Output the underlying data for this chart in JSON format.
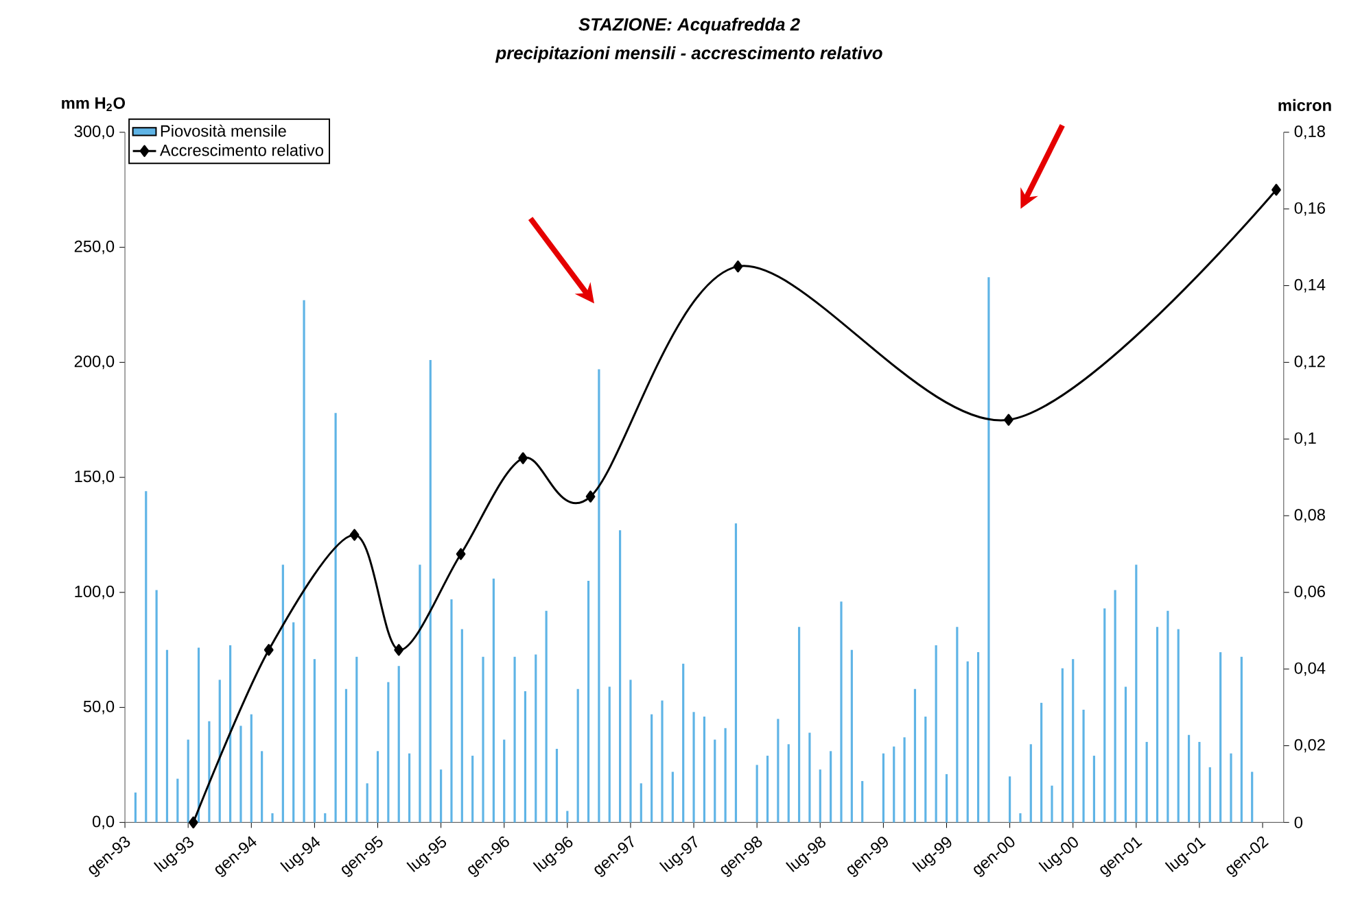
{
  "chart_data": {
    "type": "bar",
    "title": "STAZIONE: Acquafredda 2",
    "subtitle": "precipitazioni mensili - accrescimento relativo",
    "ylabel": "mm H$_{2}$O",
    "y2label": "micron",
    "xlim": [
      "1993-01",
      "2002-03"
    ],
    "xticks": [
      {
        "value": "1993-01",
        "label": "gen-93"
      },
      {
        "value": "1993-07",
        "label": "lug-93"
      },
      {
        "value": "1994-01",
        "label": "gen-94"
      },
      {
        "value": "1994-07",
        "label": "lug-94"
      },
      {
        "value": "1995-01",
        "label": "gen-95"
      },
      {
        "value": "1995-07",
        "label": "lug-95"
      },
      {
        "value": "1996-01",
        "label": "gen-96"
      },
      {
        "value": "1996-07",
        "label": "lug-96"
      },
      {
        "value": "1997-01",
        "label": "gen-97"
      },
      {
        "value": "1997-07",
        "label": "lug-97"
      },
      {
        "value": "1998-01",
        "label": "gen-98"
      },
      {
        "value": "1998-07",
        "label": "lug-98"
      },
      {
        "value": "1999-01",
        "label": "gen-99"
      },
      {
        "value": "1999-07",
        "label": "lug-99"
      },
      {
        "value": "2000-01",
        "label": "gen-00"
      },
      {
        "value": "2000-07",
        "label": "lug-00"
      },
      {
        "value": "2001-01",
        "label": "gen-01"
      },
      {
        "value": "2001-07",
        "label": "lug-01"
      },
      {
        "value": "2002-01",
        "label": "gen-02"
      }
    ],
    "ylim": [
      0,
      300
    ],
    "yticks": [
      {
        "value": 0,
        "label": "0,0"
      },
      {
        "value": 50,
        "label": "50,0"
      },
      {
        "value": 100,
        "label": "100,0"
      },
      {
        "value": 150,
        "label": "150,0"
      },
      {
        "value": 200,
        "label": "200,0"
      },
      {
        "value": 250,
        "label": "250,0"
      },
      {
        "value": 300,
        "label": "300,0"
      }
    ],
    "y2lim": [
      0,
      0.18
    ],
    "y2ticks": [
      0,
      {
        "value": 0.02,
        "label": "0,02"
      },
      {
        "value": 0.04,
        "label": "0,04"
      },
      {
        "value": 0.06,
        "label": "0,06"
      },
      {
        "value": 0.08,
        "label": "0,08"
      },
      {
        "value": 0.1,
        "label": "0,1"
      },
      {
        "value": 0.12,
        "label": "0,12"
      },
      {
        "value": 0.14,
        "label": "0,14"
      },
      {
        "value": 0.16,
        "label": "0,16"
      },
      {
        "value": 0.18,
        "label": "0,18"
      }
    ],
    "legend": "top left",
    "series": [
      {
        "name": "Piovosità mensile",
        "color": "#5fb4e6",
        "x": [
          "1993-02",
          "1993-03",
          "1993-04",
          "1993-05",
          "1993-06",
          "1993-07",
          "1993-08",
          "1993-09",
          "1993-10",
          "1993-11",
          "1993-12",
          "1994-01",
          "1994-02",
          "1994-03",
          "1994-04",
          "1994-05",
          "1994-06",
          "1994-07",
          "1994-08",
          "1994-09",
          "1994-10",
          "1994-11",
          "1994-12",
          "1995-01",
          "1995-02",
          "1995-03",
          "1995-04",
          "1995-05",
          "1995-06",
          "1995-07",
          "1995-08",
          "1995-09",
          "1995-10",
          "1995-11",
          "1995-12",
          "1996-01",
          "1996-02",
          "1996-03",
          "1996-04",
          "1996-05",
          "1996-06",
          "1996-07",
          "1996-08",
          "1996-09",
          "1996-10",
          "1996-11",
          "1996-12",
          "1997-01",
          "1997-02",
          "1997-03",
          "1997-04",
          "1997-05",
          "1997-06",
          "1997-07",
          "1997-08",
          "1997-09",
          "1997-10",
          "1997-11",
          "1997-12",
          "1998-01",
          "1998-02",
          "1998-03",
          "1998-04",
          "1998-05",
          "1998-06",
          "1998-07",
          "1998-08",
          "1998-09",
          "1998-10",
          "1998-11",
          "1998-12",
          "1999-01",
          "1999-02",
          "1999-03",
          "1999-04",
          "1999-05",
          "1999-06",
          "1999-07",
          "1999-08",
          "1999-09",
          "1999-10",
          "1999-11",
          "1999-12",
          "2000-01",
          "2000-02",
          "2000-03",
          "2000-04",
          "2000-05",
          "2000-06",
          "2000-07",
          "2000-08",
          "2000-09",
          "2000-10",
          "2000-11",
          "2000-12",
          "2001-01",
          "2001-02",
          "2001-03",
          "2001-04",
          "2001-05",
          "2001-06",
          "2001-07",
          "2001-08",
          "2001-09",
          "2001-10",
          "2001-11",
          "2001-12"
        ],
        "values": [
          13,
          144,
          101,
          75,
          19,
          36,
          76,
          44,
          62,
          77,
          42,
          47,
          31,
          4,
          112,
          87,
          227,
          71,
          4,
          178,
          58,
          72,
          17,
          31,
          61,
          68,
          30,
          112,
          201,
          23,
          97,
          84,
          29,
          72,
          106,
          36,
          72,
          57,
          73,
          92,
          32,
          5,
          58,
          105,
          197,
          59,
          127,
          62,
          17,
          47,
          53,
          22,
          69,
          48,
          46,
          36,
          41,
          130,
          0,
          25,
          29,
          45,
          34,
          85,
          39,
          23,
          31,
          96,
          75,
          18,
          0,
          30,
          33,
          37,
          58,
          46,
          77,
          21,
          85,
          70,
          74,
          237,
          0,
          20,
          4,
          34,
          52,
          16,
          67,
          71,
          49,
          29,
          93,
          101,
          59,
          112,
          35,
          85,
          92,
          84,
          38,
          35,
          24,
          74,
          30,
          72,
          22
        ]
      },
      {
        "name": "Accrescimento relativo",
        "type": "line",
        "axis": "y2",
        "color": "#000000",
        "marker": "diamond",
        "line_style": "solid",
        "x": [
          "1993-07-16",
          "1994-02-21",
          "1994-10-25",
          "1995-03-01",
          "1995-08-28",
          "1996-02-25",
          "1996-09-07",
          "1997-11-07",
          "1999-12-28",
          "2002-02-10"
        ],
        "values": [
          0,
          0.045,
          0.075,
          0.045,
          0.07,
          0.095,
          0.085,
          0.145,
          0.105,
          0.165
        ]
      }
    ]
  }
}
